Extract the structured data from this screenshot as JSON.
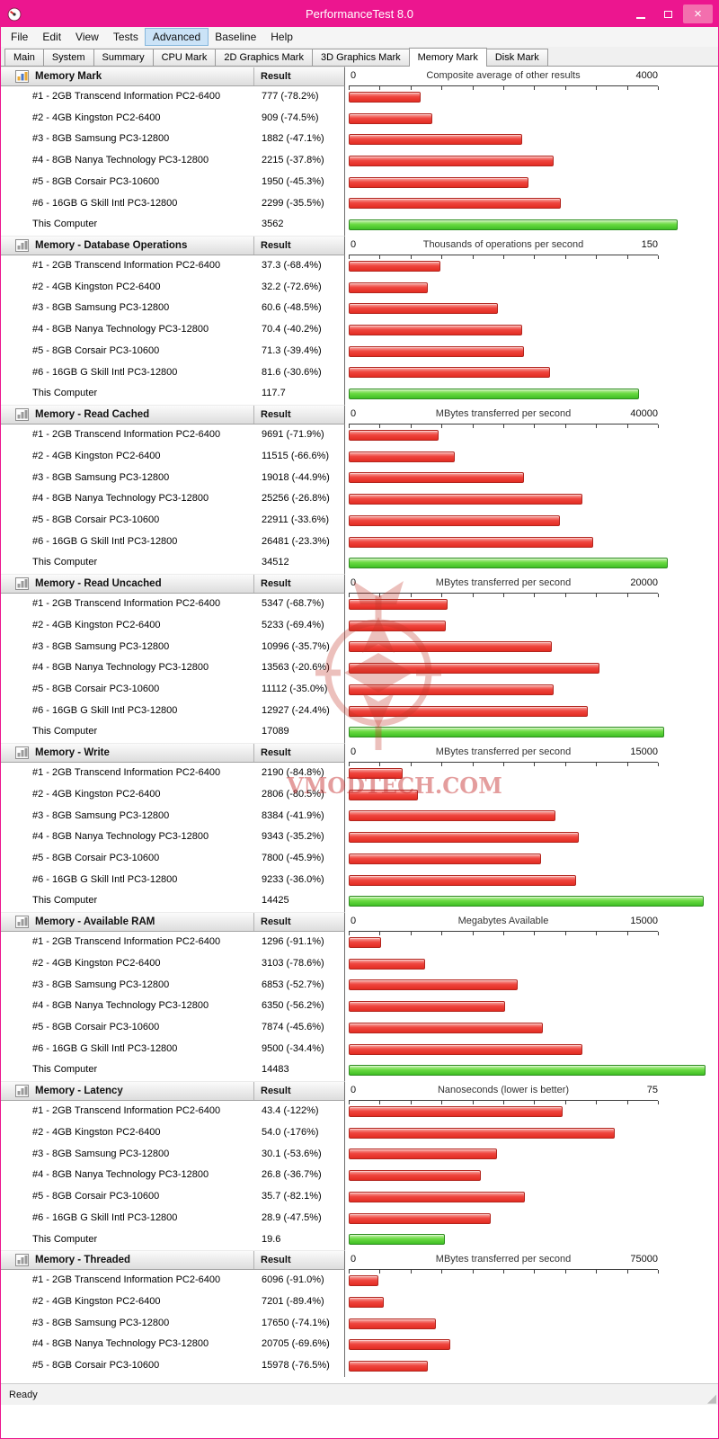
{
  "window": {
    "title": "PerformanceTest 8.0",
    "close_glyph": "×"
  },
  "menu_bar": {
    "items": [
      "File",
      "Edit",
      "View",
      "Tests",
      "Advanced",
      "Baseline",
      "Help"
    ],
    "highlighted_index": 4
  },
  "tab_bar": {
    "tabs": [
      "Main",
      "System",
      "Summary",
      "CPU Mark",
      "2D Graphics Mark",
      "3D Graphics Mark",
      "Memory Mark",
      "Disk Mark"
    ],
    "active_index": 6
  },
  "result_header": "Result",
  "axis_zero": "0",
  "colors": {
    "titlebar_pink": "#ec168f",
    "bar_red": "#ee4136",
    "bar_green": "#4ec932",
    "menu_highlight": "#cbe3f7"
  },
  "watermark": {
    "text": "VMODTECH.COM"
  },
  "status_bar": {
    "text": "Ready"
  },
  "sections": [
    {
      "title": "Memory Mark",
      "axis_title": "Composite average of other results",
      "axis_max": 4000,
      "axis_max_label": "4000",
      "rows": [
        {
          "label": "#1 - 2GB Transcend Information PC2-6400",
          "result": "777 (-78.2%)",
          "value": 777,
          "this_computer": false
        },
        {
          "label": "#2 - 4GB Kingston PC2-6400",
          "result": "909 (-74.5%)",
          "value": 909,
          "this_computer": false
        },
        {
          "label": "#3 - 8GB Samsung PC3-12800",
          "result": "1882 (-47.1%)",
          "value": 1882,
          "this_computer": false
        },
        {
          "label": "#4 - 8GB Nanya Technology PC3-12800",
          "result": "2215 (-37.8%)",
          "value": 2215,
          "this_computer": false
        },
        {
          "label": "#5 - 8GB Corsair PC3-10600",
          "result": "1950 (-45.3%)",
          "value": 1950,
          "this_computer": false
        },
        {
          "label": "#6 - 16GB G Skill Intl PC3-12800",
          "result": "2299 (-35.5%)",
          "value": 2299,
          "this_computer": false
        },
        {
          "label": "This Computer",
          "result": "3562",
          "value": 3562,
          "this_computer": true
        }
      ]
    },
    {
      "title": "Memory - Database Operations",
      "axis_title": "Thousands of operations per second",
      "axis_max": 150,
      "axis_max_label": "150",
      "rows": [
        {
          "label": "#1 - 2GB Transcend Information PC2-6400",
          "result": "37.3 (-68.4%)",
          "value": 37.3,
          "this_computer": false
        },
        {
          "label": "#2 - 4GB Kingston PC2-6400",
          "result": "32.2 (-72.6%)",
          "value": 32.2,
          "this_computer": false
        },
        {
          "label": "#3 - 8GB Samsung PC3-12800",
          "result": "60.6 (-48.5%)",
          "value": 60.6,
          "this_computer": false
        },
        {
          "label": "#4 - 8GB Nanya Technology PC3-12800",
          "result": "70.4 (-40.2%)",
          "value": 70.4,
          "this_computer": false
        },
        {
          "label": "#5 - 8GB Corsair PC3-10600",
          "result": "71.3 (-39.4%)",
          "value": 71.3,
          "this_computer": false
        },
        {
          "label": "#6 - 16GB G Skill Intl PC3-12800",
          "result": "81.6 (-30.6%)",
          "value": 81.6,
          "this_computer": false
        },
        {
          "label": "This Computer",
          "result": "117.7",
          "value": 117.7,
          "this_computer": true
        }
      ]
    },
    {
      "title": "Memory - Read Cached",
      "axis_title": "MBytes transferred per second",
      "axis_max": 40000,
      "axis_max_label": "40000",
      "rows": [
        {
          "label": "#1 - 2GB Transcend Information PC2-6400",
          "result": "9691 (-71.9%)",
          "value": 9691,
          "this_computer": false
        },
        {
          "label": "#2 - 4GB Kingston PC2-6400",
          "result": "11515 (-66.6%)",
          "value": 11515,
          "this_computer": false
        },
        {
          "label": "#3 - 8GB Samsung PC3-12800",
          "result": "19018 (-44.9%)",
          "value": 19018,
          "this_computer": false
        },
        {
          "label": "#4 - 8GB Nanya Technology PC3-12800",
          "result": "25256 (-26.8%)",
          "value": 25256,
          "this_computer": false
        },
        {
          "label": "#5 - 8GB Corsair PC3-10600",
          "result": "22911 (-33.6%)",
          "value": 22911,
          "this_computer": false
        },
        {
          "label": "#6 - 16GB G Skill Intl PC3-12800",
          "result": "26481 (-23.3%)",
          "value": 26481,
          "this_computer": false
        },
        {
          "label": "This Computer",
          "result": "34512",
          "value": 34512,
          "this_computer": true
        }
      ]
    },
    {
      "title": "Memory - Read Uncached",
      "axis_title": "MBytes transferred per second",
      "axis_max": 20000,
      "axis_max_label": "20000",
      "rows": [
        {
          "label": "#1 - 2GB Transcend Information PC2-6400",
          "result": "5347 (-68.7%)",
          "value": 5347,
          "this_computer": false
        },
        {
          "label": "#2 - 4GB Kingston PC2-6400",
          "result": "5233 (-69.4%)",
          "value": 5233,
          "this_computer": false
        },
        {
          "label": "#3 - 8GB Samsung PC3-12800",
          "result": "10996 (-35.7%)",
          "value": 10996,
          "this_computer": false
        },
        {
          "label": "#4 - 8GB Nanya Technology PC3-12800",
          "result": "13563 (-20.6%)",
          "value": 13563,
          "this_computer": false
        },
        {
          "label": "#5 - 8GB Corsair PC3-10600",
          "result": "11112 (-35.0%)",
          "value": 11112,
          "this_computer": false
        },
        {
          "label": "#6 - 16GB G Skill Intl PC3-12800",
          "result": "12927 (-24.4%)",
          "value": 12927,
          "this_computer": false
        },
        {
          "label": "This Computer",
          "result": "17089",
          "value": 17089,
          "this_computer": true
        }
      ]
    },
    {
      "title": "Memory - Write",
      "axis_title": "MBytes transferred per second",
      "axis_max": 15000,
      "axis_max_label": "15000",
      "rows": [
        {
          "label": "#1 - 2GB Transcend Information PC2-6400",
          "result": "2190 (-84.8%)",
          "value": 2190,
          "this_computer": false
        },
        {
          "label": "#2 - 4GB Kingston PC2-6400",
          "result": "2806 (-80.5%)",
          "value": 2806,
          "this_computer": false
        },
        {
          "label": "#3 - 8GB Samsung PC3-12800",
          "result": "8384 (-41.9%)",
          "value": 8384,
          "this_computer": false
        },
        {
          "label": "#4 - 8GB Nanya Technology PC3-12800",
          "result": "9343 (-35.2%)",
          "value": 9343,
          "this_computer": false
        },
        {
          "label": "#5 - 8GB Corsair PC3-10600",
          "result": "7800 (-45.9%)",
          "value": 7800,
          "this_computer": false
        },
        {
          "label": "#6 - 16GB G Skill Intl PC3-12800",
          "result": "9233 (-36.0%)",
          "value": 9233,
          "this_computer": false
        },
        {
          "label": "This Computer",
          "result": "14425",
          "value": 14425,
          "this_computer": true
        }
      ]
    },
    {
      "title": "Memory - Available RAM",
      "axis_title": "Megabytes Available",
      "axis_max": 15000,
      "axis_max_label": "15000",
      "rows": [
        {
          "label": "#1 - 2GB Transcend Information PC2-6400",
          "result": "1296 (-91.1%)",
          "value": 1296,
          "this_computer": false
        },
        {
          "label": "#2 - 4GB Kingston PC2-6400",
          "result": "3103 (-78.6%)",
          "value": 3103,
          "this_computer": false
        },
        {
          "label": "#3 - 8GB Samsung PC3-12800",
          "result": "6853 (-52.7%)",
          "value": 6853,
          "this_computer": false
        },
        {
          "label": "#4 - 8GB Nanya Technology PC3-12800",
          "result": "6350 (-56.2%)",
          "value": 6350,
          "this_computer": false
        },
        {
          "label": "#5 - 8GB Corsair PC3-10600",
          "result": "7874 (-45.6%)",
          "value": 7874,
          "this_computer": false
        },
        {
          "label": "#6 - 16GB G Skill Intl PC3-12800",
          "result": "9500 (-34.4%)",
          "value": 9500,
          "this_computer": false
        },
        {
          "label": "This Computer",
          "result": "14483",
          "value": 14483,
          "this_computer": true
        }
      ]
    },
    {
      "title": "Memory - Latency",
      "axis_title": "Nanoseconds (lower is better)",
      "axis_max": 75,
      "axis_max_label": "75",
      "rows": [
        {
          "label": "#1 - 2GB Transcend Information PC2-6400",
          "result": "43.4 (-122%)",
          "value": 43.4,
          "this_computer": false
        },
        {
          "label": "#2 - 4GB Kingston PC2-6400",
          "result": "54.0 (-176%)",
          "value": 54.0,
          "this_computer": false
        },
        {
          "label": "#3 - 8GB Samsung PC3-12800",
          "result": "30.1 (-53.6%)",
          "value": 30.1,
          "this_computer": false
        },
        {
          "label": "#4 - 8GB Nanya Technology PC3-12800",
          "result": "26.8 (-36.7%)",
          "value": 26.8,
          "this_computer": false
        },
        {
          "label": "#5 - 8GB Corsair PC3-10600",
          "result": "35.7 (-82.1%)",
          "value": 35.7,
          "this_computer": false
        },
        {
          "label": "#6 - 16GB G Skill Intl PC3-12800",
          "result": "28.9 (-47.5%)",
          "value": 28.9,
          "this_computer": false
        },
        {
          "label": "This Computer",
          "result": "19.6",
          "value": 19.6,
          "this_computer": true
        }
      ]
    },
    {
      "title": "Memory - Threaded",
      "axis_title": "MBytes transferred per second",
      "axis_max": 75000,
      "axis_max_label": "75000",
      "rows": [
        {
          "label": "#1 - 2GB Transcend Information PC2-6400",
          "result": "6096 (-91.0%)",
          "value": 6096,
          "this_computer": false
        },
        {
          "label": "#2 - 4GB Kingston PC2-6400",
          "result": "7201 (-89.4%)",
          "value": 7201,
          "this_computer": false
        },
        {
          "label": "#3 - 8GB Samsung PC3-12800",
          "result": "17650 (-74.1%)",
          "value": 17650,
          "this_computer": false
        },
        {
          "label": "#4 - 8GB Nanya Technology PC3-12800",
          "result": "20705 (-69.6%)",
          "value": 20705,
          "this_computer": false
        },
        {
          "label": "#5 - 8GB Corsair PC3-10600",
          "result": "15978 (-76.5%)",
          "value": 15978,
          "this_computer": false
        }
      ]
    }
  ]
}
